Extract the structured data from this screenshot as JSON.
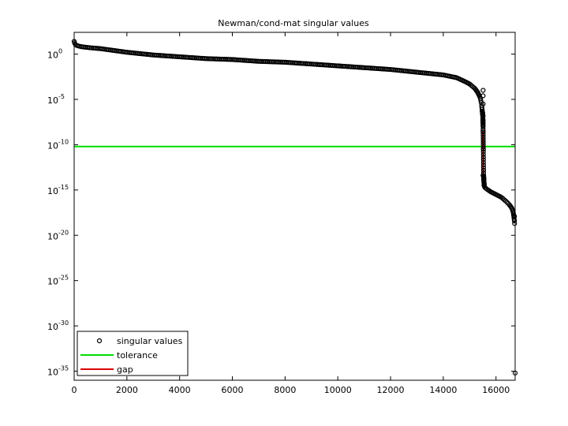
{
  "chart_data": {
    "type": "scatter",
    "title": "Newman/cond-mat singular values",
    "xlabel": "",
    "ylabel": "",
    "xlim": [
      0,
      16726
    ],
    "ylog": true,
    "ylim_exp": [
      -36,
      2.4
    ],
    "grid": false,
    "legend_position": "bottom-left",
    "x_ticks": [
      0,
      2000,
      4000,
      6000,
      8000,
      10000,
      12000,
      14000,
      16000
    ],
    "x_tick_labels": [
      "0",
      "2000",
      "4000",
      "6000",
      "8000",
      "10000",
      "12000",
      "14000",
      "16000"
    ],
    "y_ticks_exp": [
      0,
      -5,
      -10,
      -15,
      -20,
      -25,
      -30,
      -35
    ],
    "y_tick_base": "10",
    "y_tick_exponents": [
      "0",
      "-5",
      "-10",
      "-15",
      "-20",
      "-25",
      "-30",
      "-35"
    ],
    "series": [
      {
        "name": "singular values",
        "style": "markers",
        "marker": "circle",
        "color": "#000000",
        "x": [
          0,
          20,
          60,
          150,
          300,
          600,
          1000,
          2000,
          3000,
          4000,
          5000,
          6000,
          7000,
          8000,
          9000,
          10000,
          11000,
          12000,
          13000,
          14000,
          14500,
          14800,
          15000,
          15200,
          15300,
          15400,
          15450,
          15480,
          15500,
          15510,
          15520,
          15530,
          15535,
          15540,
          15545,
          15550,
          15555,
          15560,
          15600,
          15700,
          15800,
          16000,
          16200,
          16400,
          16500,
          16600,
          16650,
          16680,
          16700,
          16710,
          16720,
          16725
        ],
        "y_exp": [
          1.4,
          1.2,
          1.0,
          0.9,
          0.8,
          0.7,
          0.6,
          0.2,
          -0.1,
          -0.3,
          -0.5,
          -0.6,
          -0.8,
          -0.9,
          -1.1,
          -1.3,
          -1.5,
          -1.7,
          -2.0,
          -2.3,
          -2.6,
          -3.0,
          -3.3,
          -3.8,
          -4.2,
          -4.8,
          -5.5,
          -6.3,
          -6.8,
          -8.0,
          -10.5,
          -13.4,
          -13.7,
          -14.0,
          -14.2,
          -14.4,
          -14.5,
          -14.6,
          -14.8,
          -15.0,
          -15.2,
          -15.5,
          -15.8,
          -16.3,
          -16.6,
          -17.0,
          -17.4,
          -18.0,
          -18.5,
          -19.0,
          -35.2,
          -35.4
        ],
        "y_exp_isolated": [
          [
            15510,
            -4.0
          ],
          [
            15510,
            -4.6
          ],
          [
            15510,
            -5.5
          ],
          [
            15510,
            -6.8
          ],
          [
            15510,
            -7.3
          ],
          [
            15510,
            -7.6
          ],
          [
            15510,
            -8.5
          ],
          [
            15510,
            -13.4
          ],
          [
            16700,
            -17.9
          ],
          [
            16700,
            -18.4
          ],
          [
            16726,
            -35.2
          ]
        ]
      },
      {
        "name": "tolerance",
        "style": "line",
        "color": "#00dd00",
        "y_exp_const": -10.2
      },
      {
        "name": "gap",
        "style": "line",
        "color": "#dd0000",
        "x": [
          15510,
          15510
        ],
        "y_exp": [
          -8.5,
          -13.4
        ]
      }
    ]
  }
}
